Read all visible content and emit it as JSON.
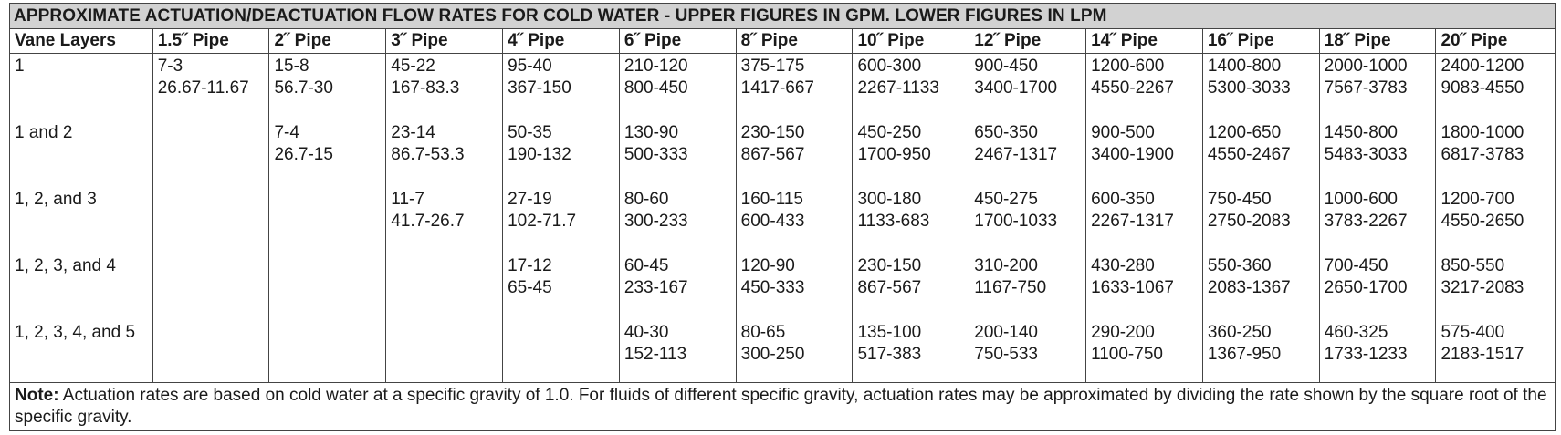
{
  "title": "APPROXIMATE ACTUATION/DEACTUATION FLOW RATES FOR  COLD WATER - UPPER FIGURES IN GPM. LOWER FIGURES IN LPM",
  "columns": [
    "Vane Layers",
    "1.5˝ Pipe",
    "2˝ Pipe",
    "3˝ Pipe",
    "4˝ Pipe",
    "6˝ Pipe",
    "8˝ Pipe",
    "10˝ Pipe",
    "12˝ Pipe",
    "14˝ Pipe",
    "16˝ Pipe",
    "18˝ Pipe",
    "20˝ Pipe"
  ],
  "rows": [
    {
      "layers": "1",
      "cells": [
        [
          "7-3",
          "26.67-11.67"
        ],
        [
          "15-8",
          "56.7-30"
        ],
        [
          "45-22",
          "167-83.3"
        ],
        [
          "95-40",
          "367-150"
        ],
        [
          "210-120",
          "800-450"
        ],
        [
          "375-175",
          "1417-667"
        ],
        [
          "600-300",
          "2267-1133"
        ],
        [
          "900-450",
          "3400-1700"
        ],
        [
          "1200-600",
          "4550-2267"
        ],
        [
          "1400-800",
          "5300-3033"
        ],
        [
          "2000-1000",
          "7567-3783"
        ],
        [
          "2400-1200",
          "9083-4550"
        ]
      ]
    },
    {
      "layers": "1 and 2",
      "cells": [
        [
          "",
          ""
        ],
        [
          "7-4",
          "26.7-15"
        ],
        [
          "23-14",
          "86.7-53.3"
        ],
        [
          "50-35",
          "190-132"
        ],
        [
          "130-90",
          "500-333"
        ],
        [
          "230-150",
          "867-567"
        ],
        [
          "450-250",
          "1700-950"
        ],
        [
          "650-350",
          "2467-1317"
        ],
        [
          "900-500",
          "3400-1900"
        ],
        [
          "1200-650",
          "4550-2467"
        ],
        [
          "1450-800",
          "5483-3033"
        ],
        [
          "1800-1000",
          "6817-3783"
        ]
      ]
    },
    {
      "layers": "1, 2, and 3",
      "cells": [
        [
          "",
          ""
        ],
        [
          "",
          ""
        ],
        [
          "11-7",
          "41.7-26.7"
        ],
        [
          "27-19",
          "102-71.7"
        ],
        [
          "80-60",
          "300-233"
        ],
        [
          "160-115",
          "600-433"
        ],
        [
          "300-180",
          "1133-683"
        ],
        [
          "450-275",
          "1700-1033"
        ],
        [
          "600-350",
          "2267-1317"
        ],
        [
          "750-450",
          "2750-2083"
        ],
        [
          "1000-600",
          "3783-2267"
        ],
        [
          "1200-700",
          "4550-2650"
        ]
      ]
    },
    {
      "layers": "1, 2, 3, and 4",
      "cells": [
        [
          "",
          ""
        ],
        [
          "",
          ""
        ],
        [
          "",
          ""
        ],
        [
          "17-12",
          "65-45"
        ],
        [
          "60-45",
          "233-167"
        ],
        [
          "120-90",
          "450-333"
        ],
        [
          "230-150",
          "867-567"
        ],
        [
          "310-200",
          "1167-750"
        ],
        [
          "430-280",
          "1633-1067"
        ],
        [
          "550-360",
          "2083-1367"
        ],
        [
          "700-450",
          "2650-1700"
        ],
        [
          "850-550",
          "3217-2083"
        ]
      ]
    },
    {
      "layers": "1, 2, 3, 4, and 5",
      "cells": [
        [
          "",
          ""
        ],
        [
          "",
          ""
        ],
        [
          "",
          ""
        ],
        [
          "",
          ""
        ],
        [
          "40-30",
          "152-113"
        ],
        [
          "80-65",
          "300-250"
        ],
        [
          "135-100",
          "517-383"
        ],
        [
          "200-140",
          "750-533"
        ],
        [
          "290-200",
          "1100-750"
        ],
        [
          "360-250",
          "1367-950"
        ],
        [
          "460-325",
          "1733-1233"
        ],
        [
          "575-400",
          "2183-1517"
        ]
      ]
    }
  ],
  "note": {
    "label": "Note:",
    "text": " Actuation rates are based on cold water at a specific gravity of 1.0. For fluids of different specific gravity, actuation rates may be approximated by dividing the rate shown by the square root of the specific gravity."
  }
}
